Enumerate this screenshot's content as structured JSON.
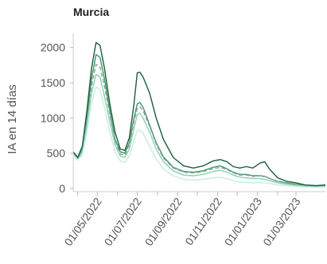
{
  "chart_data": {
    "type": "line",
    "title": "Murcia",
    "ylabel": "IA en 14 días",
    "xlabel": "",
    "xlim": [
      "2022-03-25",
      "2023-04-15"
    ],
    "ylim": [
      0,
      2200
    ],
    "y_ticks": [
      0,
      500,
      1000,
      1500,
      2000
    ],
    "x_ticks": [
      "2022-05-01",
      "2022-07-01",
      "2022-09-01",
      "2022-11-01",
      "2023-01-01",
      "2023-03-01"
    ],
    "x_tick_labels": [
      "01/05/2022",
      "01/07/2022",
      "01/09/2022",
      "01/11/2022",
      "01/01/2023",
      "01/03/2023"
    ],
    "grid": false,
    "legend": "none",
    "series": [
      {
        "color": "#1b5e3b",
        "dashed": false,
        "points": [
          [
            "2022-03-25",
            520
          ],
          [
            "2022-04-01",
            440
          ],
          [
            "2022-04-08",
            600
          ],
          [
            "2022-04-15",
            1100
          ],
          [
            "2022-04-22",
            1700
          ],
          [
            "2022-04-29",
            2070
          ],
          [
            "2022-05-05",
            2030
          ],
          [
            "2022-05-12",
            1700
          ],
          [
            "2022-05-20",
            1200
          ],
          [
            "2022-05-28",
            800
          ],
          [
            "2022-06-05",
            560
          ],
          [
            "2022-06-12",
            540
          ],
          [
            "2022-06-19",
            720
          ],
          [
            "2022-06-26",
            1200
          ],
          [
            "2022-07-01",
            1640
          ],
          [
            "2022-07-05",
            1650
          ],
          [
            "2022-07-10",
            1580
          ],
          [
            "2022-07-20",
            1350
          ],
          [
            "2022-07-30",
            1000
          ],
          [
            "2022-08-10",
            700
          ],
          [
            "2022-08-25",
            440
          ],
          [
            "2022-09-10",
            320
          ],
          [
            "2022-09-25",
            290
          ],
          [
            "2022-10-10",
            320
          ],
          [
            "2022-10-25",
            390
          ],
          [
            "2022-11-05",
            410
          ],
          [
            "2022-11-15",
            380
          ],
          [
            "2022-11-25",
            310
          ],
          [
            "2022-12-05",
            290
          ],
          [
            "2022-12-15",
            310
          ],
          [
            "2022-12-25",
            290
          ],
          [
            "2023-01-05",
            360
          ],
          [
            "2023-01-12",
            380
          ],
          [
            "2023-01-20",
            270
          ],
          [
            "2023-02-01",
            150
          ],
          [
            "2023-02-15",
            100
          ],
          [
            "2023-03-01",
            80
          ],
          [
            "2023-03-15",
            50
          ],
          [
            "2023-04-01",
            40
          ],
          [
            "2023-04-15",
            50
          ]
        ]
      },
      {
        "color": "#3a9a6a",
        "dashed": false,
        "points": [
          [
            "2022-03-25",
            500
          ],
          [
            "2022-04-01",
            430
          ],
          [
            "2022-04-08",
            560
          ],
          [
            "2022-04-15",
            1000
          ],
          [
            "2022-04-22",
            1550
          ],
          [
            "2022-04-29",
            1900
          ],
          [
            "2022-05-05",
            1860
          ],
          [
            "2022-05-12",
            1550
          ],
          [
            "2022-05-20",
            1100
          ],
          [
            "2022-05-28",
            700
          ],
          [
            "2022-06-05",
            520
          ],
          [
            "2022-06-12",
            500
          ],
          [
            "2022-06-19",
            650
          ],
          [
            "2022-06-26",
            1000
          ],
          [
            "2022-07-01",
            1200
          ],
          [
            "2022-07-05",
            1220
          ],
          [
            "2022-07-10",
            1150
          ],
          [
            "2022-07-20",
            900
          ],
          [
            "2022-07-30",
            650
          ],
          [
            "2022-08-10",
            450
          ],
          [
            "2022-08-25",
            300
          ],
          [
            "2022-09-10",
            240
          ],
          [
            "2022-09-25",
            230
          ],
          [
            "2022-10-10",
            250
          ],
          [
            "2022-10-25",
            300
          ],
          [
            "2022-11-05",
            320
          ],
          [
            "2022-11-15",
            280
          ],
          [
            "2022-11-25",
            230
          ],
          [
            "2022-12-05",
            200
          ],
          [
            "2022-12-15",
            200
          ],
          [
            "2022-12-25",
            180
          ],
          [
            "2023-01-05",
            180
          ],
          [
            "2023-01-12",
            170
          ],
          [
            "2023-01-20",
            140
          ],
          [
            "2023-02-01",
            100
          ],
          [
            "2023-02-15",
            80
          ],
          [
            "2023-03-01",
            60
          ],
          [
            "2023-03-15",
            45
          ],
          [
            "2023-04-01",
            35
          ],
          [
            "2023-04-15",
            40
          ]
        ]
      },
      {
        "color": "#999999",
        "dashed": true,
        "points": [
          [
            "2022-03-25",
            500
          ],
          [
            "2022-04-01",
            420
          ],
          [
            "2022-04-08",
            540
          ],
          [
            "2022-04-15",
            950
          ],
          [
            "2022-04-22",
            1450
          ],
          [
            "2022-04-29",
            1760
          ],
          [
            "2022-05-05",
            1720
          ],
          [
            "2022-05-12",
            1450
          ],
          [
            "2022-05-20",
            1050
          ],
          [
            "2022-05-28",
            680
          ],
          [
            "2022-06-05",
            490
          ],
          [
            "2022-06-12",
            470
          ],
          [
            "2022-06-19",
            620
          ],
          [
            "2022-06-26",
            950
          ],
          [
            "2022-07-01",
            1140
          ],
          [
            "2022-07-05",
            1160
          ],
          [
            "2022-07-10",
            1100
          ],
          [
            "2022-07-20",
            880
          ],
          [
            "2022-07-30",
            630
          ],
          [
            "2022-08-10",
            430
          ],
          [
            "2022-08-25",
            290
          ],
          [
            "2022-09-10",
            230
          ],
          [
            "2022-09-25",
            220
          ],
          [
            "2022-10-10",
            240
          ],
          [
            "2022-10-25",
            280
          ],
          [
            "2022-11-05",
            300
          ],
          [
            "2022-11-15",
            270
          ],
          [
            "2022-11-25",
            220
          ],
          [
            "2022-12-05",
            190
          ],
          [
            "2022-12-15",
            190
          ],
          [
            "2022-12-25",
            170
          ],
          [
            "2023-01-05",
            180
          ],
          [
            "2023-01-12",
            175
          ],
          [
            "2023-01-20",
            140
          ],
          [
            "2023-02-01",
            100
          ],
          [
            "2023-02-15",
            75
          ],
          [
            "2023-03-01",
            55
          ],
          [
            "2023-03-15",
            40
          ],
          [
            "2023-04-01",
            30
          ],
          [
            "2023-04-15",
            35
          ]
        ]
      },
      {
        "color": "#88d1b4",
        "dashed": false,
        "points": [
          [
            "2022-03-25",
            490
          ],
          [
            "2022-04-01",
            410
          ],
          [
            "2022-04-08",
            520
          ],
          [
            "2022-04-15",
            900
          ],
          [
            "2022-04-22",
            1350
          ],
          [
            "2022-04-29",
            1620
          ],
          [
            "2022-05-05",
            1580
          ],
          [
            "2022-05-12",
            1300
          ],
          [
            "2022-05-20",
            950
          ],
          [
            "2022-05-28",
            620
          ],
          [
            "2022-06-05",
            460
          ],
          [
            "2022-06-12",
            440
          ],
          [
            "2022-06-19",
            560
          ],
          [
            "2022-06-26",
            850
          ],
          [
            "2022-07-01",
            1050
          ],
          [
            "2022-07-05",
            1070
          ],
          [
            "2022-07-10",
            1000
          ],
          [
            "2022-07-20",
            800
          ],
          [
            "2022-07-30",
            560
          ],
          [
            "2022-08-10",
            380
          ],
          [
            "2022-08-25",
            250
          ],
          [
            "2022-09-10",
            190
          ],
          [
            "2022-09-25",
            180
          ],
          [
            "2022-10-10",
            200
          ],
          [
            "2022-10-25",
            240
          ],
          [
            "2022-11-05",
            260
          ],
          [
            "2022-11-15",
            230
          ],
          [
            "2022-11-25",
            190
          ],
          [
            "2022-12-05",
            160
          ],
          [
            "2022-12-15",
            150
          ],
          [
            "2022-12-25",
            140
          ],
          [
            "2023-01-05",
            140
          ],
          [
            "2023-01-12",
            130
          ],
          [
            "2023-01-20",
            110
          ],
          [
            "2023-02-01",
            80
          ],
          [
            "2023-02-15",
            60
          ],
          [
            "2023-03-01",
            45
          ],
          [
            "2023-03-15",
            35
          ],
          [
            "2023-04-01",
            25
          ],
          [
            "2023-04-15",
            30
          ]
        ]
      },
      {
        "color": "#c8ece0",
        "dashed": false,
        "points": [
          [
            "2022-03-25",
            480
          ],
          [
            "2022-04-01",
            400
          ],
          [
            "2022-04-08",
            480
          ],
          [
            "2022-04-15",
            800
          ],
          [
            "2022-04-22",
            1200
          ],
          [
            "2022-04-29",
            1440
          ],
          [
            "2022-05-05",
            1400
          ],
          [
            "2022-05-12",
            1150
          ],
          [
            "2022-05-20",
            800
          ],
          [
            "2022-05-28",
            520
          ],
          [
            "2022-06-05",
            390
          ],
          [
            "2022-06-12",
            370
          ],
          [
            "2022-06-19",
            460
          ],
          [
            "2022-06-26",
            680
          ],
          [
            "2022-07-01",
            820
          ],
          [
            "2022-07-05",
            830
          ],
          [
            "2022-07-10",
            780
          ],
          [
            "2022-07-20",
            600
          ],
          [
            "2022-07-30",
            420
          ],
          [
            "2022-08-10",
            280
          ],
          [
            "2022-08-25",
            180
          ],
          [
            "2022-09-10",
            130
          ],
          [
            "2022-09-25",
            120
          ],
          [
            "2022-10-10",
            130
          ],
          [
            "2022-10-25",
            150
          ],
          [
            "2022-11-05",
            160
          ],
          [
            "2022-11-15",
            140
          ],
          [
            "2022-11-25",
            110
          ],
          [
            "2022-12-05",
            90
          ],
          [
            "2022-12-15",
            85
          ],
          [
            "2022-12-25",
            80
          ],
          [
            "2023-01-05",
            85
          ],
          [
            "2023-01-12",
            80
          ],
          [
            "2023-01-20",
            70
          ],
          [
            "2023-02-01",
            50
          ],
          [
            "2023-02-15",
            40
          ],
          [
            "2023-03-01",
            30
          ],
          [
            "2023-03-15",
            22
          ],
          [
            "2023-04-01",
            18
          ],
          [
            "2023-04-15",
            20
          ]
        ]
      }
    ]
  }
}
